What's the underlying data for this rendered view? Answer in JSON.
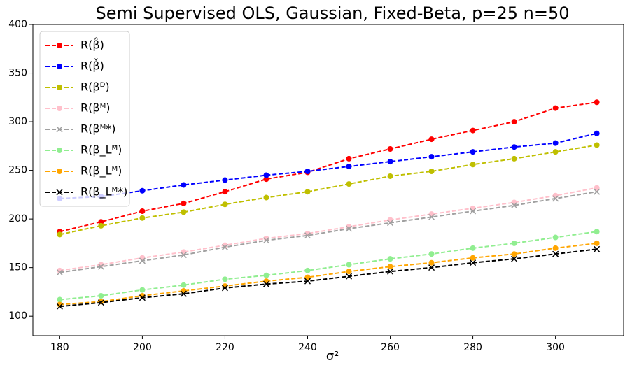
{
  "chart_data": {
    "type": "line",
    "title": "Semi Supervised OLS, Gaussian, Fixed-Beta, p=25 n=50",
    "x_label": "σ²",
    "x": [
      180,
      190,
      200,
      210,
      220,
      230,
      240,
      250,
      260,
      270,
      280,
      290,
      300,
      310
    ],
    "xlim": [
      173.5,
      316.5
    ],
    "xticks": [
      180,
      200,
      220,
      240,
      260,
      280,
      300
    ],
    "ylim": [
      80,
      400
    ],
    "yticks": [
      100,
      150,
      200,
      250,
      300,
      350,
      400
    ],
    "grid": false,
    "legend": "upper left",
    "series": [
      {
        "name": "R(β̂)",
        "color": "#ff0000",
        "marker": "o",
        "values": [
          187,
          197,
          208,
          216,
          228,
          241,
          248,
          262,
          272,
          282,
          291,
          300,
          314,
          320
        ]
      },
      {
        "name": "R(β̌)",
        "color": "#0000ff",
        "marker": "o",
        "values": [
          221,
          223,
          229,
          235,
          240,
          245,
          249,
          254,
          259,
          264,
          269,
          274,
          278,
          288
        ]
      },
      {
        "name": "R(βᴰ)",
        "color": "#bfbf00",
        "marker": "o",
        "values": [
          184,
          193,
          201,
          207,
          215,
          222,
          228,
          236,
          244,
          249,
          256,
          262,
          269,
          276
        ]
      },
      {
        "name": "R(βᴹ)",
        "color": "#ffc0cb",
        "marker": "o",
        "values": [
          147,
          153,
          160,
          166,
          173,
          180,
          185,
          192,
          199,
          205,
          211,
          217,
          224,
          232
        ]
      },
      {
        "name": "R(βᴹ*)",
        "color": "#a0a0a0",
        "marker": "x",
        "values": [
          145,
          151,
          157,
          163,
          171,
          178,
          183,
          190,
          196,
          202,
          208,
          214,
          221,
          228
        ]
      },
      {
        "name": "R(β_Lᴹ̄)",
        "color": "#90ee90",
        "marker": "o",
        "values": [
          117,
          121,
          127,
          132,
          138,
          142,
          147,
          153,
          159,
          164,
          170,
          175,
          181,
          187
        ]
      },
      {
        "name": "R(β_Lᴹ)",
        "color": "#ffa500",
        "marker": "o",
        "values": [
          112,
          115,
          121,
          126,
          131,
          136,
          140,
          146,
          151,
          155,
          160,
          164,
          170,
          175
        ]
      },
      {
        "name": "R(β_Lᴹ*)",
        "color": "#000000",
        "marker": "x",
        "values": [
          110,
          114,
          119,
          123,
          129,
          133,
          136,
          141,
          146,
          150,
          155,
          159,
          164,
          169
        ]
      }
    ]
  }
}
